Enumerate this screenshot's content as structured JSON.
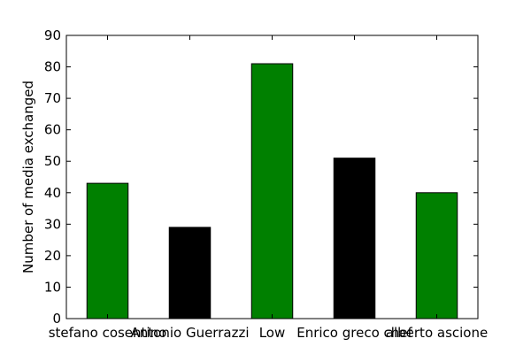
{
  "chart_data": {
    "type": "bar",
    "title": "",
    "xlabel": "",
    "ylabel": "Number of media exchanged",
    "categories": [
      "stefano cosentino",
      "Antonio Guerrazzi",
      "Low",
      "Enrico greco chef",
      "alberto ascione"
    ],
    "values": [
      43,
      29,
      81,
      51,
      40
    ],
    "colors": [
      "#008000",
      "#000000",
      "#008000",
      "#000000",
      "#008000"
    ],
    "ylim": [
      0,
      90
    ],
    "yticks": [
      0,
      10,
      20,
      30,
      40,
      50,
      60,
      70,
      80,
      90
    ],
    "ytick_labels": [
      "0",
      "10",
      "20",
      "30",
      "40",
      "50",
      "60",
      "70",
      "80",
      "90"
    ],
    "grid": false,
    "legend": "none"
  }
}
